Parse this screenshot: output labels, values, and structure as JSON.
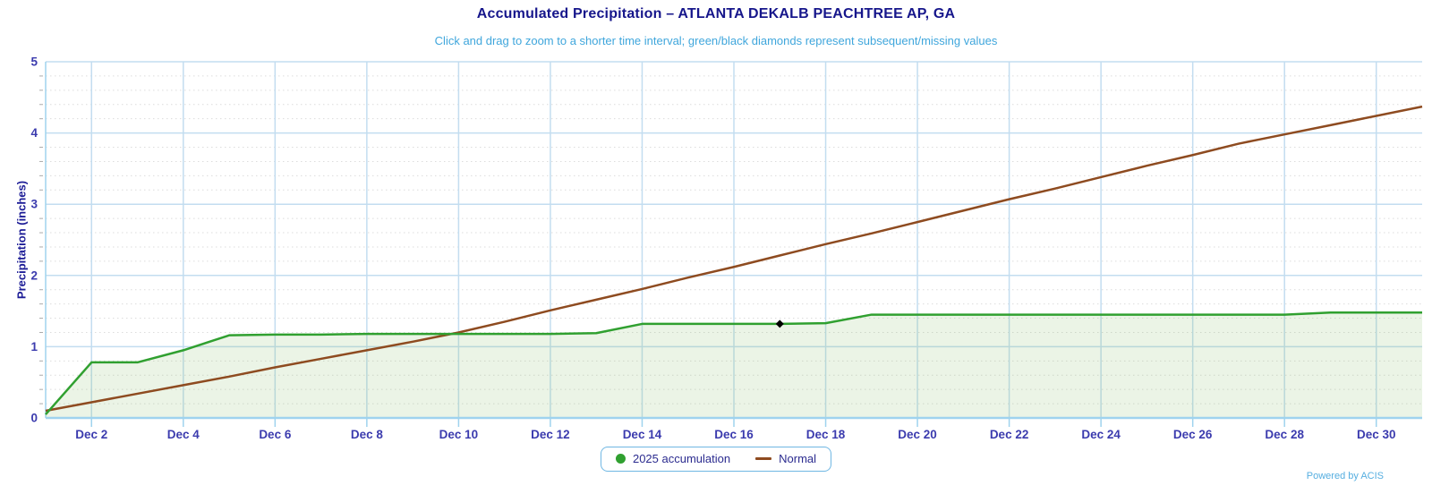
{
  "header": {
    "title": "Accumulated Precipitation – ATLANTA DEKALB PEACHTREE AP, GA",
    "subtitle": "Click and drag to zoom to a shorter time interval; green/black diamonds represent subsequent/missing values"
  },
  "colors": {
    "title": "#16168B",
    "subtitle": "#3FA6DC",
    "axis_tick_label": "#3B3BAE",
    "axis_line": "#9FD3EE",
    "grid_major": "#C3DDF0",
    "grid_minor": "#DCDCDC",
    "minor_tick": "#AAAAAA",
    "accumulation_line": "#30A030",
    "accumulation_fill": "rgba(144,196,116,0.18)",
    "normal_line": "#8E4B20",
    "legend_border": "#6FB7E3",
    "legend_text": "#2B2B8F",
    "powered_by": "#55AEE0",
    "missing_marker": "#000000"
  },
  "legend": {
    "items": [
      {
        "label": "2025 accumulation",
        "swatch": "circle",
        "color": "#30A030"
      },
      {
        "label": "Normal",
        "swatch": "line",
        "color": "#8E4B20"
      }
    ]
  },
  "footer": {
    "powered_by": "Powered by ACIS"
  },
  "chart_data": {
    "type": "line",
    "title": "Accumulated Precipitation – ATLANTA DEKALB PEACHTREE AP, GA",
    "subtitle": "Click and drag to zoom to a shorter time interval; green/black diamonds represent subsequent/missing values",
    "xlabel": "",
    "ylabel": "Precipitation (inches)",
    "ylim": [
      0,
      5
    ],
    "y_ticks": [
      0,
      1,
      2,
      3,
      4,
      5
    ],
    "y_minor_step": 0.2,
    "grid": "on",
    "legend_position": "bottom-center",
    "x": [
      "Dec 1",
      "Dec 2",
      "Dec 3",
      "Dec 4",
      "Dec 5",
      "Dec 6",
      "Dec 7",
      "Dec 8",
      "Dec 9",
      "Dec 10",
      "Dec 11",
      "Dec 12",
      "Dec 13",
      "Dec 14",
      "Dec 15",
      "Dec 16",
      "Dec 17",
      "Dec 18",
      "Dec 19",
      "Dec 20",
      "Dec 21",
      "Dec 22",
      "Dec 23",
      "Dec 24",
      "Dec 25",
      "Dec 26",
      "Dec 27",
      "Dec 28",
      "Dec 29",
      "Dec 30",
      "Dec 31"
    ],
    "x_tick_labels": [
      "Dec 2",
      "Dec 4",
      "Dec 6",
      "Dec 8",
      "Dec 10",
      "Dec 12",
      "Dec 14",
      "Dec 16",
      "Dec 18",
      "Dec 20",
      "Dec 22",
      "Dec 24",
      "Dec 26",
      "Dec 28",
      "Dec 30"
    ],
    "series": [
      {
        "name": "2025 accumulation",
        "style": "area",
        "color": "#30A030",
        "values": [
          0.05,
          0.78,
          0.78,
          0.95,
          1.16,
          1.17,
          1.17,
          1.18,
          1.18,
          1.18,
          1.18,
          1.18,
          1.19,
          1.32,
          1.32,
          1.32,
          1.32,
          1.33,
          1.45,
          1.45,
          1.45,
          1.45,
          1.45,
          1.45,
          1.45,
          1.45,
          1.45,
          1.45,
          1.48,
          1.48,
          1.48
        ]
      },
      {
        "name": "Normal",
        "style": "line",
        "color": "#8E4B20",
        "values": [
          0.1,
          0.22,
          0.34,
          0.46,
          0.58,
          0.71,
          0.83,
          0.95,
          1.07,
          1.2,
          1.35,
          1.51,
          1.66,
          1.81,
          1.97,
          2.12,
          2.28,
          2.44,
          2.59,
          2.75,
          2.91,
          3.07,
          3.22,
          3.38,
          3.54,
          3.69,
          3.85,
          3.98,
          4.11,
          4.24,
          4.37
        ]
      }
    ],
    "markers": [
      {
        "shape": "black-diamond",
        "x": "Dec 17",
        "y": 1.32,
        "meaning": "missing value"
      }
    ]
  }
}
